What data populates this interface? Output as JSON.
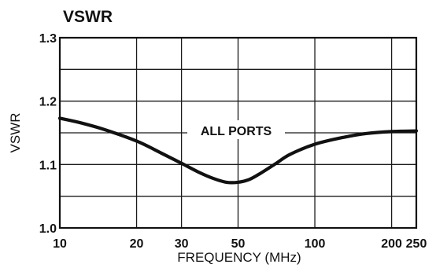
{
  "chart_data": {
    "type": "line",
    "title": "VSWR",
    "xlabel": "FREQUENCY (MHz)",
    "ylabel": "VSWR",
    "x_scale": "log",
    "xlim": [
      10,
      250
    ],
    "ylim": [
      1.0,
      1.3
    ],
    "grid": true,
    "x_ticks": [
      10,
      20,
      30,
      50,
      100,
      200,
      250
    ],
    "x_tick_labels": [
      "10",
      "20",
      "30",
      "50",
      "100",
      "200",
      "250"
    ],
    "y_ticks": [
      1.0,
      1.1,
      1.2,
      1.3
    ],
    "y_tick_labels": [
      "1.0",
      "1.1",
      "1.2",
      "1.3"
    ],
    "x_gridlines": [
      10,
      20,
      30,
      50,
      100,
      200,
      250
    ],
    "y_gridlines": [
      1.0,
      1.05,
      1.1,
      1.15,
      1.2,
      1.25,
      1.3
    ],
    "annotation": "ALL PORTS",
    "series": [
      {
        "x": [
          10,
          12,
          15,
          20,
          25,
          30,
          35,
          40,
          45,
          50,
          55,
          60,
          70,
          80,
          100,
          130,
          160,
          200,
          250
        ],
        "y": [
          1.173,
          1.166,
          1.155,
          1.137,
          1.118,
          1.102,
          1.088,
          1.078,
          1.072,
          1.072,
          1.076,
          1.084,
          1.101,
          1.116,
          1.132,
          1.143,
          1.149,
          1.152,
          1.153
        ]
      }
    ],
    "colors": {
      "line": "#111111",
      "grid": "#1a1a1a",
      "background": "#ffffff"
    }
  }
}
